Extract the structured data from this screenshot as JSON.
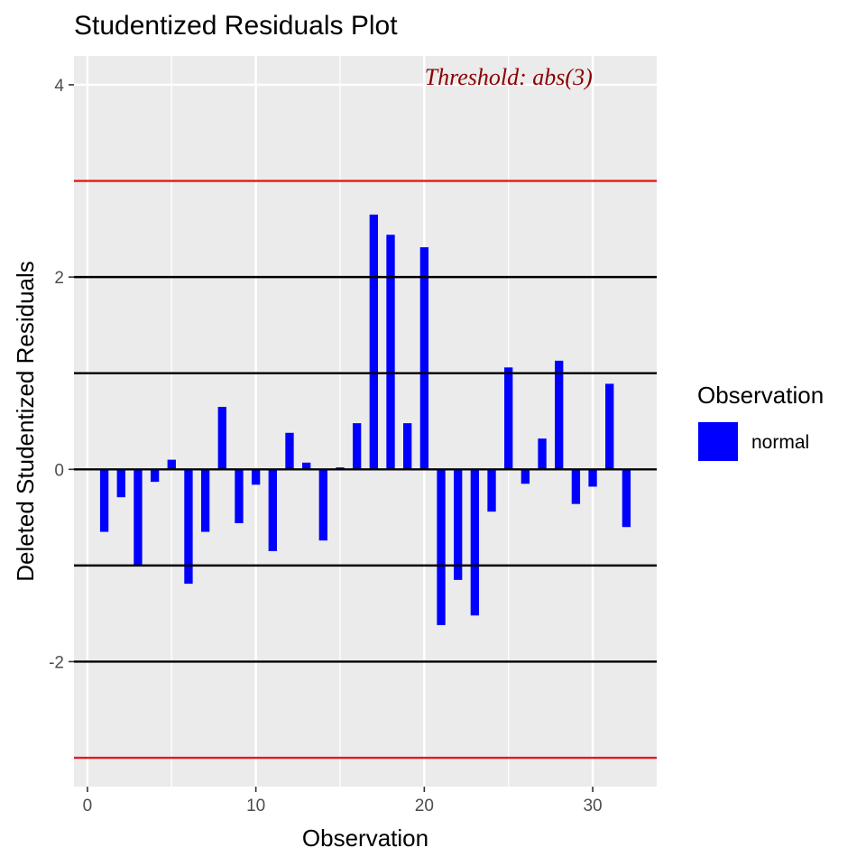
{
  "chart_data": {
    "type": "bar",
    "title": "Studentized Residuals Plot",
    "xlabel": "Observation",
    "ylabel": "Deleted Studentized Residuals",
    "xlim": [
      -0.8,
      33.8
    ],
    "ylim": [
      -3.3,
      4.3
    ],
    "x_ticks": [
      0,
      10,
      20,
      30
    ],
    "y_ticks": [
      -2,
      0,
      2,
      4
    ],
    "grid": true,
    "x": [
      1,
      2,
      3,
      4,
      5,
      6,
      7,
      8,
      9,
      10,
      11,
      12,
      13,
      14,
      15,
      16,
      17,
      18,
      19,
      20,
      21,
      22,
      23,
      24,
      25,
      26,
      27,
      28,
      29,
      30,
      31,
      32
    ],
    "values": [
      -0.65,
      -0.29,
      -1.0,
      -0.13,
      0.1,
      -1.19,
      -0.65,
      0.65,
      -0.56,
      -0.16,
      -0.85,
      0.38,
      0.07,
      -0.74,
      0.02,
      0.48,
      2.65,
      2.44,
      0.48,
      2.31,
      -1.62,
      -1.15,
      -1.52,
      -0.44,
      1.06,
      -0.15,
      0.32,
      1.13,
      -0.36,
      -0.18,
      0.89,
      -0.6
    ],
    "series": [
      {
        "name": "normal",
        "color": "#0000ff"
      }
    ],
    "reference_lines": [
      {
        "y": 3,
        "color": "#e41a1c"
      },
      {
        "y": -3,
        "color": "#e41a1c"
      },
      {
        "y": 2,
        "color": "#000000"
      },
      {
        "y": 1,
        "color": "#000000"
      },
      {
        "y": 0,
        "color": "#000000"
      },
      {
        "y": -1,
        "color": "#000000"
      },
      {
        "y": -2,
        "color": "#000000"
      }
    ],
    "annotation": {
      "text": "Threshold: abs(3)",
      "x": 25,
      "y": 4,
      "color": "#8b0000"
    },
    "legend": {
      "title": "Observation",
      "position": "right",
      "entries": [
        {
          "label": "normal",
          "color": "#0000ff"
        }
      ]
    },
    "panel_background": "#ebebeb"
  }
}
